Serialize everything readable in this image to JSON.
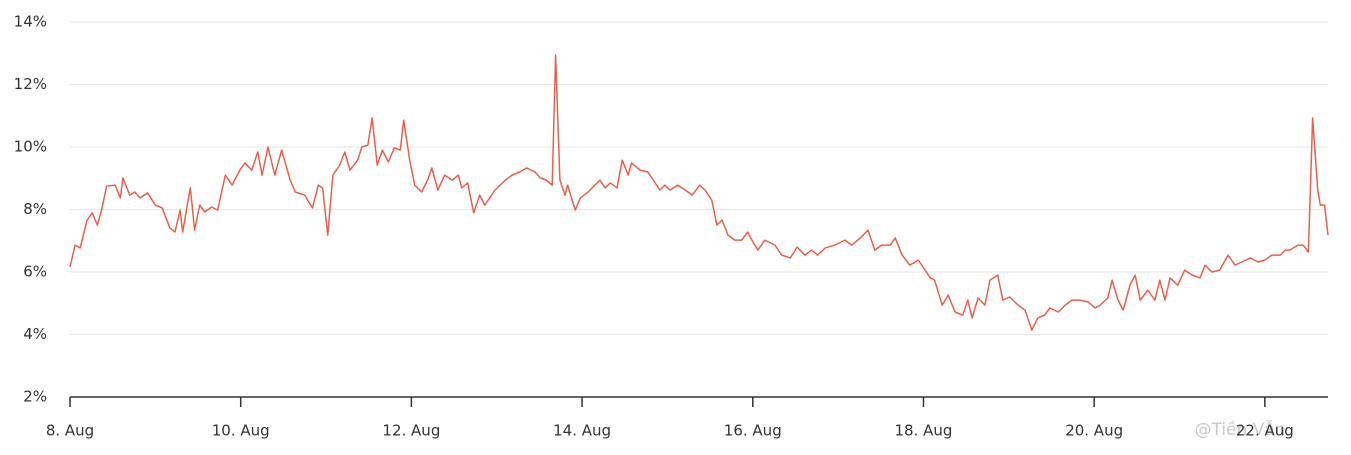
{
  "chart_data": {
    "type": "line",
    "watermark": "@Tiền Vẫn",
    "x": [
      8.0,
      8.06,
      8.12,
      8.2,
      8.26,
      8.32,
      8.37,
      8.43,
      8.53,
      8.59,
      8.62,
      8.7,
      8.76,
      8.82,
      8.91,
      9.0,
      9.08,
      9.17,
      9.23,
      9.29,
      9.32,
      9.41,
      9.46,
      9.52,
      9.58,
      9.66,
      9.73,
      9.82,
      9.9,
      9.99,
      10.05,
      10.13,
      10.2,
      10.25,
      10.32,
      10.4,
      10.48,
      10.58,
      10.64,
      10.75,
      10.84,
      10.91,
      10.96,
      11.02,
      11.08,
      11.16,
      11.22,
      11.28,
      11.37,
      11.42,
      11.49,
      11.54,
      11.6,
      11.66,
      11.73,
      11.8,
      11.87,
      11.91,
      11.98,
      12.04,
      12.12,
      12.19,
      12.24,
      12.31,
      12.39,
      12.48,
      12.55,
      12.59,
      12.66,
      12.73,
      12.8,
      12.86,
      12.98,
      13.1,
      13.18,
      13.27,
      13.35,
      13.45,
      13.51,
      13.58,
      13.65,
      13.69,
      13.74,
      13.8,
      13.83,
      13.92,
      13.98,
      14.07,
      14.15,
      14.21,
      14.27,
      14.33,
      14.41,
      14.47,
      14.54,
      14.58,
      14.68,
      14.77,
      14.85,
      14.91,
      14.97,
      15.03,
      15.12,
      15.21,
      15.29,
      15.38,
      15.44,
      15.52,
      15.58,
      15.64,
      15.71,
      15.79,
      15.87,
      15.94,
      15.99,
      16.06,
      16.14,
      16.26,
      16.34,
      16.44,
      16.52,
      16.61,
      16.69,
      16.76,
      16.85,
      16.96,
      17.08,
      17.16,
      17.26,
      17.35,
      17.43,
      17.51,
      17.61,
      17.67,
      17.75,
      17.84,
      17.94,
      18.02,
      18.08,
      18.13,
      18.22,
      18.29,
      18.37,
      18.46,
      18.52,
      18.57,
      18.64,
      18.72,
      18.78,
      18.87,
      18.93,
      19.01,
      19.11,
      19.19,
      19.27,
      19.34,
      19.42,
      19.48,
      19.58,
      19.66,
      19.74,
      19.83,
      19.93,
      20.01,
      20.07,
      20.16,
      20.21,
      20.28,
      20.34,
      20.42,
      20.48,
      20.54,
      20.63,
      20.71,
      20.77,
      20.83,
      20.89,
      20.98,
      21.06,
      21.15,
      21.24,
      21.3,
      21.38,
      21.47,
      21.57,
      21.65,
      21.73,
      21.83,
      21.92,
      22.0,
      22.08,
      22.18,
      22.24,
      22.29,
      22.39,
      22.45,
      22.51,
      22.56,
      22.62,
      22.65,
      22.7,
      22.74
    ],
    "series": [
      {
        "color": "#e8604c",
        "values": [
          6.16,
          6.86,
          6.77,
          7.66,
          7.89,
          7.5,
          7.98,
          8.75,
          8.78,
          8.37,
          9.01,
          8.46,
          8.56,
          8.37,
          8.53,
          8.14,
          8.05,
          7.41,
          7.28,
          7.98,
          7.28,
          8.69,
          7.34,
          8.14,
          7.92,
          8.08,
          7.98,
          9.1,
          8.78,
          9.26,
          9.49,
          9.26,
          9.84,
          9.1,
          10.0,
          9.1,
          9.9,
          8.94,
          8.56,
          8.46,
          8.05,
          8.78,
          8.69,
          7.18,
          9.1,
          9.42,
          9.84,
          9.26,
          9.58,
          10.0,
          10.06,
          10.93,
          9.42,
          9.9,
          9.52,
          9.97,
          9.9,
          10.86,
          9.58,
          8.78,
          8.56,
          8.94,
          9.33,
          8.62,
          9.1,
          8.94,
          9.1,
          8.69,
          8.85,
          7.89,
          8.46,
          8.14,
          8.62,
          8.94,
          9.1,
          9.2,
          9.33,
          9.2,
          9.01,
          8.94,
          8.78,
          12.94,
          8.94,
          8.46,
          8.78,
          7.98,
          8.37,
          8.56,
          8.78,
          8.94,
          8.69,
          8.85,
          8.69,
          9.58,
          9.1,
          9.49,
          9.26,
          9.2,
          8.88,
          8.62,
          8.78,
          8.62,
          8.78,
          8.62,
          8.46,
          8.78,
          8.62,
          8.3,
          7.5,
          7.66,
          7.18,
          7.02,
          7.02,
          7.28,
          7.02,
          6.7,
          7.02,
          6.86,
          6.54,
          6.45,
          6.8,
          6.54,
          6.7,
          6.54,
          6.77,
          6.86,
          7.02,
          6.86,
          7.09,
          7.34,
          6.7,
          6.86,
          6.86,
          7.09,
          6.54,
          6.22,
          6.38,
          6.06,
          5.81,
          5.74,
          4.94,
          5.26,
          4.72,
          4.62,
          5.1,
          4.53,
          5.17,
          4.94,
          5.74,
          5.9,
          5.1,
          5.2,
          4.94,
          4.78,
          4.14,
          4.53,
          4.62,
          4.85,
          4.72,
          4.94,
          5.1,
          5.1,
          5.04,
          4.85,
          4.94,
          5.17,
          5.74,
          5.1,
          4.78,
          5.58,
          5.9,
          5.1,
          5.42,
          5.1,
          5.74,
          5.1,
          5.81,
          5.58,
          6.06,
          5.9,
          5.81,
          6.22,
          6.0,
          6.06,
          6.54,
          6.22,
          6.32,
          6.45,
          6.32,
          6.38,
          6.54,
          6.54,
          6.7,
          6.7,
          6.86,
          6.86,
          6.64,
          10.93,
          8.62,
          8.14,
          8.14,
          7.18
        ]
      }
    ],
    "xlim": [
      8,
      22.74
    ],
    "xticks": [
      {
        "value": 8,
        "label": "8. Aug"
      },
      {
        "value": 10,
        "label": "10. Aug"
      },
      {
        "value": 12,
        "label": "12. Aug"
      },
      {
        "value": 14,
        "label": "14. Aug"
      },
      {
        "value": 16,
        "label": "16. Aug"
      },
      {
        "value": 18,
        "label": "18. Aug"
      },
      {
        "value": 20,
        "label": "20. Aug"
      },
      {
        "value": 22,
        "label": "22. Aug"
      }
    ],
    "ylim": [
      2,
      14
    ],
    "yticks": [
      {
        "value": 2,
        "label": "2%"
      },
      {
        "value": 4,
        "label": "4%"
      },
      {
        "value": 6,
        "label": "6%"
      },
      {
        "value": 8,
        "label": "8%"
      },
      {
        "value": 10,
        "label": "10%"
      },
      {
        "value": 12,
        "label": "12%"
      },
      {
        "value": 14,
        "label": "14%"
      }
    ],
    "grid": true
  }
}
